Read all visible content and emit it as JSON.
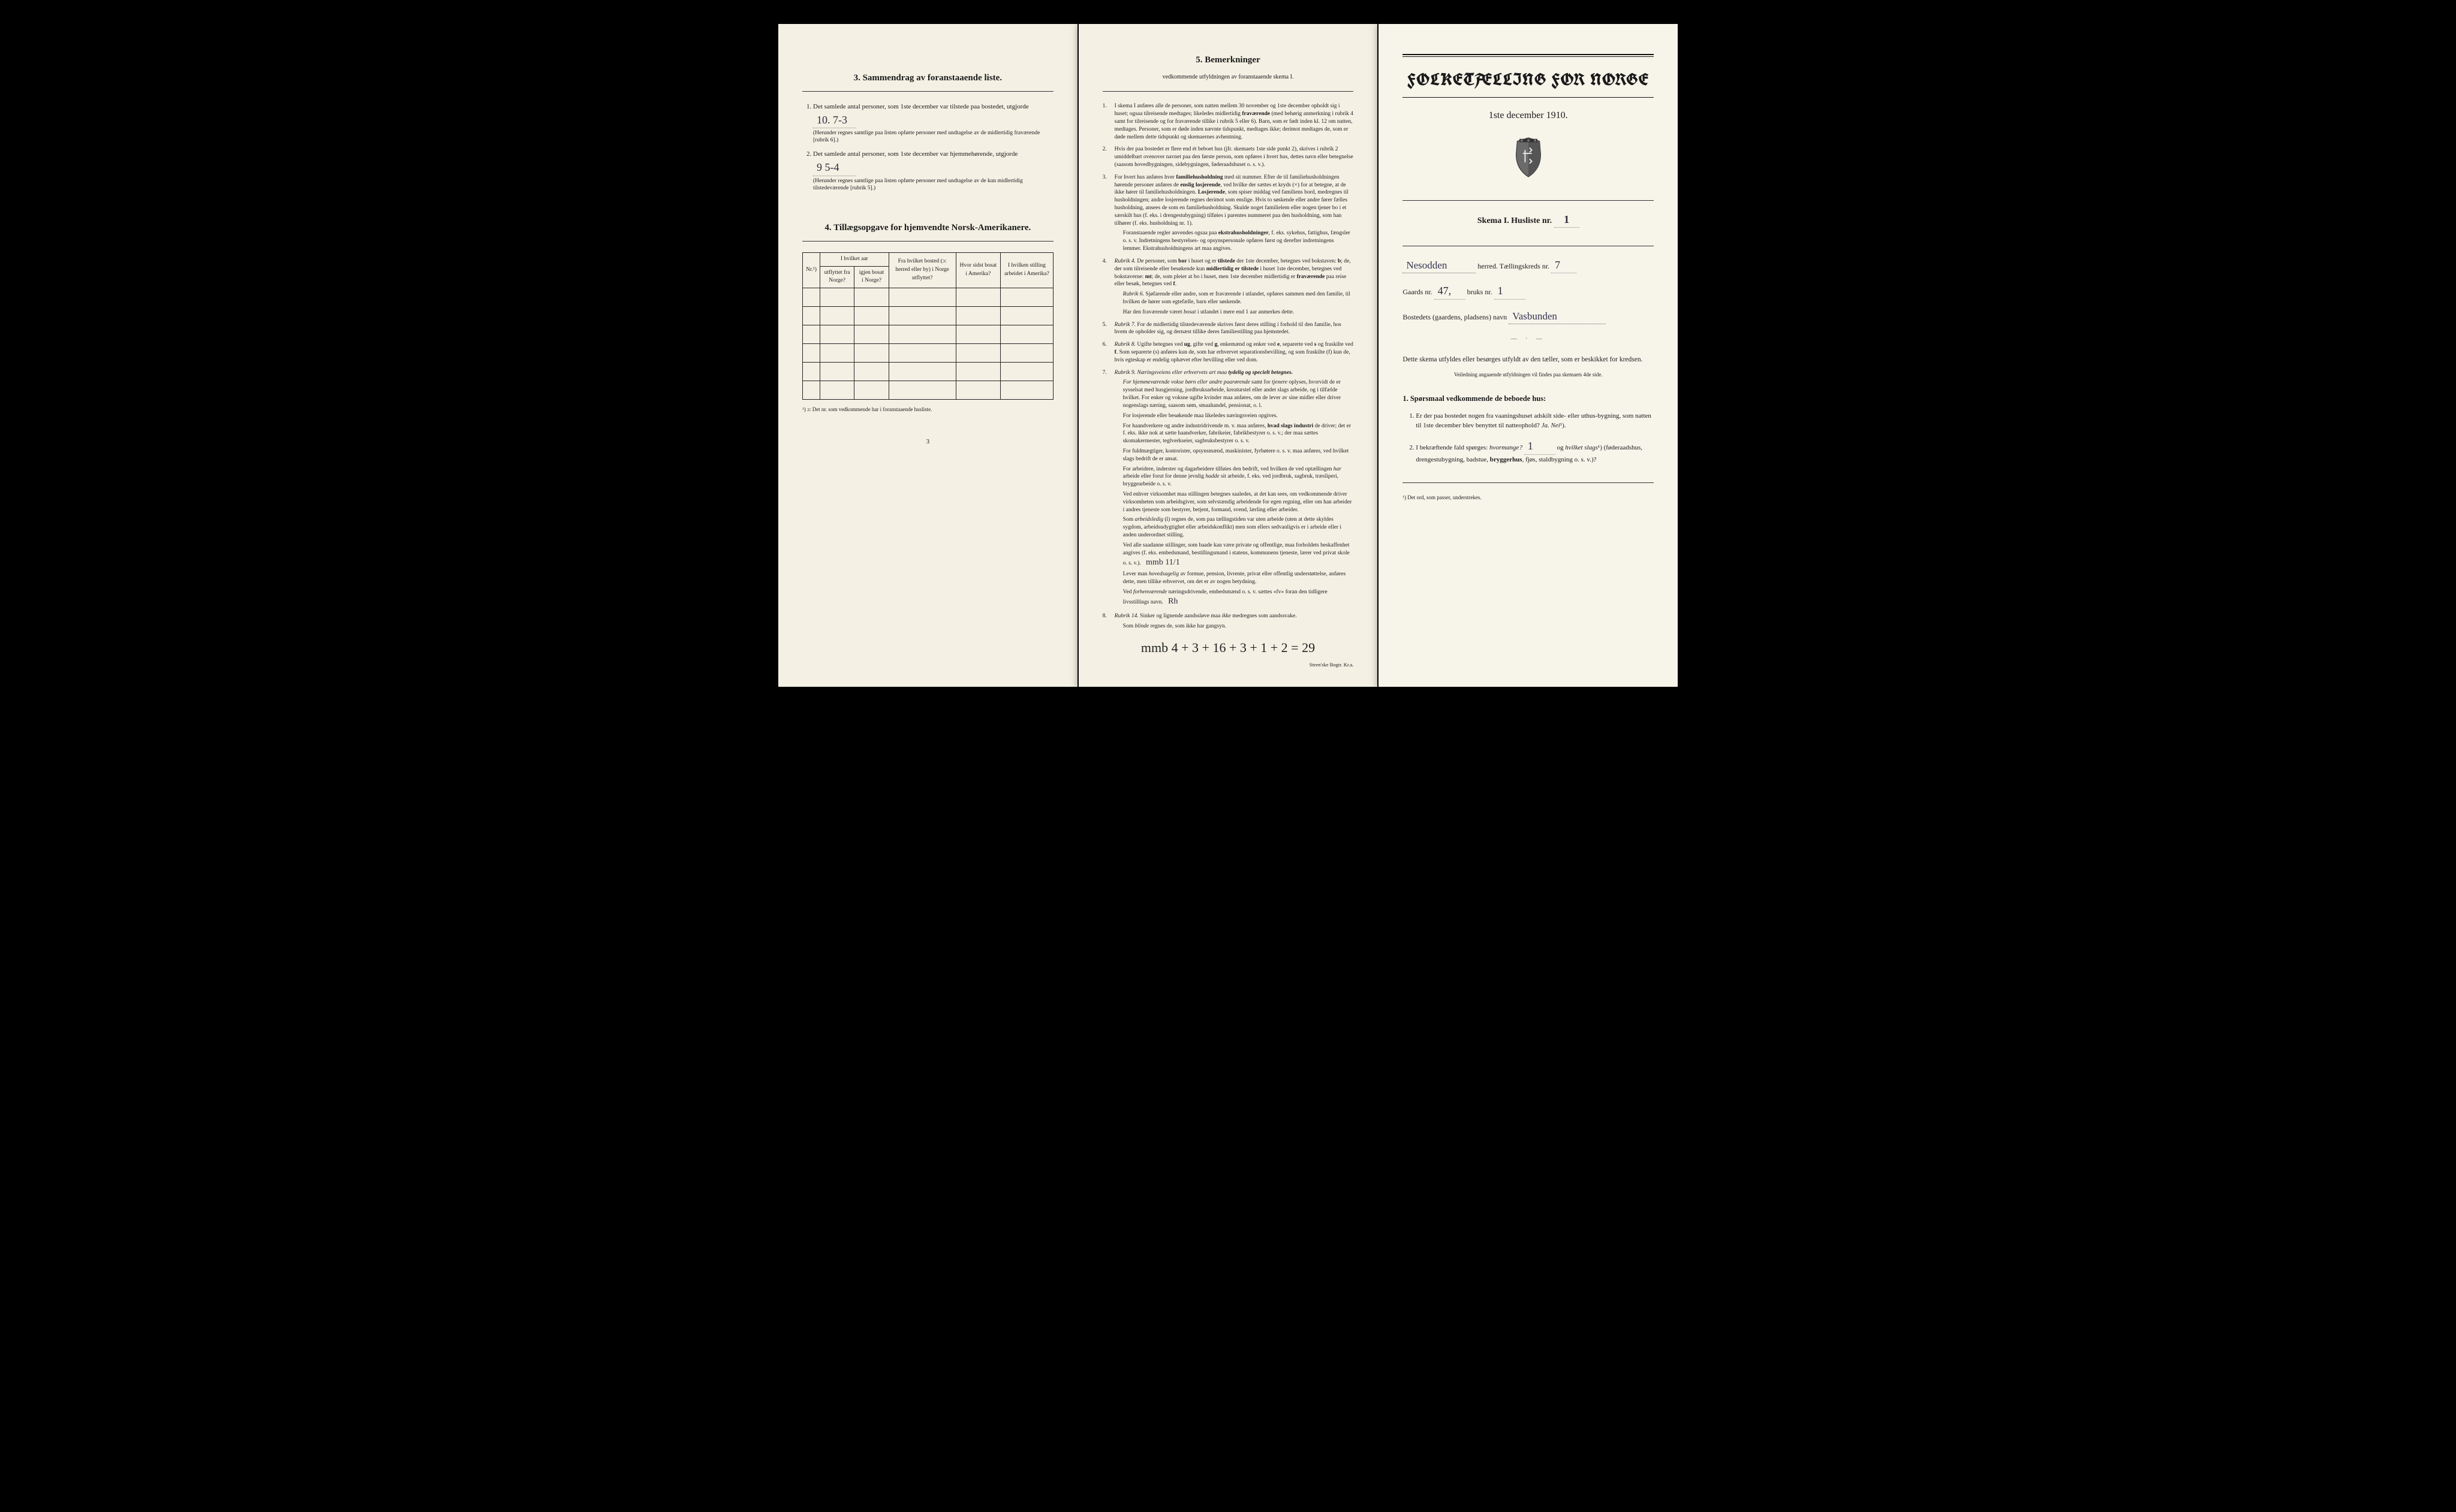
{
  "left": {
    "section3_title": "3.  Sammendrag av foranstaaende liste.",
    "item1_text": "Det samlede antal personer, som 1ste december var tilstede paa bostedet, utgjorde",
    "item1_value": "10.  7-3",
    "item1_note": "(Herunder regnes samtlige paa listen opførte personer med undtagelse av de midlertidig fraværende [rubrik 6].)",
    "item2_text": "Det samlede antal personer, som 1ste december var hjemmehørende, utgjorde",
    "item2_value": "9    5-4",
    "item2_note": "(Herunder regnes samtlige paa listen opførte personer med undtagelse av de kun midlertidig tilstedeværende [rubrik 5].)",
    "section4_title": "4.  Tillægsopgave for hjemvendte Norsk-Amerikanere.",
    "tbl_headers": {
      "nr": "Nr.¹)",
      "aar_group": "I hvilket aar",
      "utflyttet": "utflyttet fra Norge?",
      "igjen": "igjen bosat i Norge?",
      "frahvilket": "Fra hvilket bosted (ɔ: herred eller by) i Norge utflyttet?",
      "hvorsidst": "Hvor sidst bosat i Amerika?",
      "stilling": "I hvilken stilling arbeidet i Amerika?"
    },
    "tbl_footnote": "¹) ɔ: Det nr. som vedkommende har i foranstaaende husliste.",
    "page_number": "3"
  },
  "middle": {
    "title": "5.  Bemerkninger",
    "subtitle": "vedkommende utfyldningen av foranstaaende skema I.",
    "items": [
      "I skema I anføres alle de personer, som natten mellem 30 november og 1ste december opholdt sig i huset; ogsaa tilreisende medtages; likeledes midlertidig <b>fraværende</b> (med behørig anmerkning i rubrik 4 samt for tilreisende og for fraværende tillike i rubrik 5 eller 6). Barn, som er født inden kl. 12 om natten, medtages. Personer, som er døde inden nævnte tidspunkt, medtages ikke; derimot medtages de, som er døde mellem dette tidspunkt og skemaernes avhentning.",
      "Hvis der paa bostedet er flere end ét beboet hus (jfr. skemaets 1ste side punkt 2), skrives i rubrik 2 umiddelbart ovenover navnet paa den første person, som opføres i hvert hus, dettes navn eller betegnelse (saasom hovedbygningen, sidebygningen, føderaadshuset o. s. v.).",
      "For hvert hus anføres hver <b>familiehusholdning</b> med sit nummer. Efter de til familiehusholdningen hørende personer anføres de <b>enslig losjerende</b>, ved hvilke der sættes et kryds (×) for at betegne, at de ikke hører til familiehusholdningen. <b>Losjerende</b>, som spiser middag ved familiens bord, medregnes til husholdningen; andre losjerende regnes derimot som enslige. Hvis to søskende eller andre fører fælles husholdning, ansees de som en familiehusholdning. Skulde noget familielem eller nogen tjener bo i et særskilt hus (f. eks. i drengestubygning) tilføies i parentes nummeret paa den husholdning, som han tilhører (f. eks. husholdning nr. 1).<span class=\"indent\">Foranstaaende regler anvendes ogsaa paa <b>ekstrahusholdninger</b>, f. eks. sykehus, fattighus, fængsler o. s. v. Indretningens bestyrelses- og opsynspersonale opføres først og derefter indretningens lemmer. Ekstrahusholdningens art maa angives.</span>",
      "<i>Rubrik 4.</i> De personer, som <b>bor</b> i huset og er <b>tilstede</b> der 1ste december, betegnes ved bokstaven: <b>b</b>; de, der som tilreisende eller besøkende kun <b>midlertidig er tilstede</b> i huset 1ste december, betegnes ved bokstaverne: <b>mt</b>; de, som pleier at bo i huset, men 1ste december midlertidig er <b>fraværende</b> paa reise eller besøk, betegnes ved <b>f</b>.<span class=\"indent\"><i>Rubrik 6.</i> Sjøfarende eller andre, som er fraværende i utlandet, opføres sammen med den familie, til hvilken de hører som egtefælle, barn eller søskende.</span><span class=\"indent\">Har den fraværende været <i>bosat</i> i utlandet i mere end 1 aar anmerkes dette.</span>",
      "<i>Rubrik 7.</i> For de midlertidig tilstedeværende skrives først deres stilling i forhold til den familie, hos hvem de opholder sig, og dernæst tillike deres familiestilling paa hjemstedet.",
      "<i>Rubrik 8.</i> Ugifte betegnes ved <b>ug</b>, gifte ved <b>g</b>, enkemænd og enker ved <b>e</b>, separerte ved <b>s</b> og fraskilte ved <b>f</b>. Som separerte (s) anføres kun de, som har erhvervet separationsbevilling, og som fraskilte (f) kun de, hvis egteskap er endelig ophævet efter bevilling eller ved dom.",
      "<i>Rubrik 9. Næringsveiens eller erhvervets art maa <b>tydelig og specielt betegnes.</b></i><span class=\"indent\"><i>For hjemmeværende vokse børn eller andre paarørende</i> samt for <i>tjenere</i> oplyses, hvorvidt de er sysselsat med husgjerning, jordbruksarbeide, kreaturstel eller andet slags arbeide, og i tilfælde hvilket. For enker og voksne ugifte kvinder maa anføres, om de lever av sine midler eller driver nogenslags næring, saasom søm, smaahandel, pensionat, o. l.</span><span class=\"indent\">For losjerende eller besøkende maa likeledes næringsveien opgives.</span><span class=\"indent\">For haandverkere og andre industridrivende m. v. maa anføres, <b>hvad slags industri</b> de driver; det er f. eks. ikke nok at sætte haandverker, fabrikeier, fabrikbestyrer o. s. v.; der maa sættes skomakermester, teglverkseier, sagbruksbestyrer o. s. v.</span><span class=\"indent\">For fuldmægtiger, kontorister, opsynsmænd, maskinister, fyrbøtere o. s. v. maa anføres, ved hvilket slags bedrift de er ansat.</span><span class=\"indent\">For arbeidere, inderster og dagarbeidere tilføies den bedrift, ved hvilken de ved optællingen <i>har</i> arbeide eller forut for denne jevnlig <i>hadde</i> sit arbeide, f. eks. ved jordbruk, sagbruk, træsliperi, bryggearbeide o. s. v.</span><span class=\"indent\">Ved enhver virksomhet maa stillingen betegnes saaledes, at det kan sees, om vedkommende driver virksomheten som arbeidsgiver, som selvstændig arbeidende for egen regning, eller om han arbeider i andres tjeneste som bestyrer, betjent, formand, svend, lærling eller arbeider.</span><span class=\"indent\">Som <i>arbeidsledig</i> (l) regnes de, som paa tællingstiden var uten arbeide (uten at dette skyldes sygdom, arbeidsudygtighet eller arbeidskonflikt) men som ellers sedvanligvis er i arbeide eller i anden underordnet stilling.</span><span class=\"indent\">Ved alle saadanne stillinger, som baade kan være private og offentlige, maa forholdets beskaffenhet angives (f. eks. embedsmand, bestillingsmand i statens, kommunens tjeneste, lærer ved privat skole o. s. v.). <span class=\"handwritten\" style=\"font-size:14px;border:none\">mmb 11/1</span></span><span class=\"indent\">Lever man <i>hovedsagelig</i> av formue, pension, livrente, privat eller offentlig understøttelse, anføres dette, men tillike erhvervet, om det er av nogen betydning.</span><span class=\"indent\">Ved <i>forhenværende</i> næringsdrivende, embedsmænd o. s. v. sættes «fv» foran den tidligere livsstillings navn. <span class=\"handwritten\" style=\"font-size:14px;border:none\">Rh</span></span>",
      "<i>Rubrik 14.</i> Sinker og lignende aandssløve maa <i>ikke</i> medregnes som aandssvake.<span class=\"indent\">Som <i>blinde</i> regnes de, som ikke har gangsyn.</span>"
    ],
    "math": "mmb 4 + 3 + 16 + 3 + 1 + 2 = 29",
    "printer": "Steen'ske Bogtr.  Kr.a."
  },
  "right": {
    "main_title": "FOLKETÆLLING FOR NORGE",
    "date": "1ste december 1910.",
    "skema": "Skema I.  Husliste nr.",
    "husliste_nr": "1",
    "herred_label": "herred.  Tællingskreds nr.",
    "herred_value": "Nesodden",
    "kreds_nr": "7",
    "gaards_label": "Gaards nr.",
    "gaards_nr": "47,",
    "bruks_label": "bruks nr.",
    "bruks_nr": "1",
    "bosted_label": "Bostedets (gaardens, pladsens) navn",
    "bosted_value": "Vasbunden",
    "instr1": "Dette skema utfyldes eller besørges utfyldt av den tæller, som er beskikket for kredsen.",
    "instr2": "Veiledning angaaende utfyldningen vil findes paa skemaets 4de side.",
    "q_heading": "1. Spørsmaal vedkommende de beboede hus:",
    "q1": "Er der paa bostedet nogen fra vaaningshuset adskilt side- eller uthus-bygning, som natten til 1ste december blev benyttet til natteophold?  <i>Ja.  Nei</i>¹).",
    "q2": "I bekræftende fald spørges: <i>hvormange?</i> ",
    "q2_value": "1",
    "q2_tail": " og <i>hvilket slags</i>¹) (føderaadshus, drengestubygning, badstue, <b>bryggerhus</b>, fjøs, staldbygning o. s. v.)?",
    "footnote": "¹) Det ord, som passer, understrekes."
  }
}
